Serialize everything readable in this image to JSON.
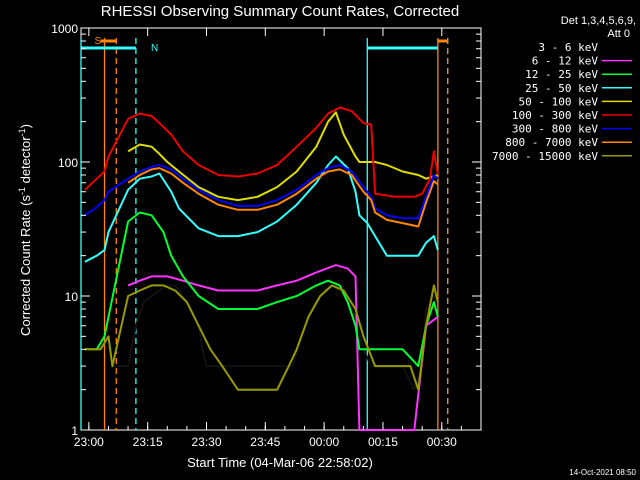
{
  "chart_data": {
    "type": "line",
    "title": "RHESSI Observing Summary Count Rates, Corrected",
    "xlabel": "Start Time (04-Mar-06 22:58:02)",
    "ylabel_main": "Corrected Count Rate (s",
    "ylabel_sup1": "-1",
    "ylabel_mid": " detector",
    "ylabel_sup2": "-1",
    "ylabel_end": ")",
    "y_scale": "log",
    "ylim": [
      1,
      1000
    ],
    "x_ticks": [
      "23:00",
      "23:15",
      "23:30",
      "23:45",
      "00:00",
      "00:15",
      "00:30"
    ],
    "x_tick_minutes": [
      2,
      17,
      32,
      47,
      62,
      77,
      92
    ],
    "xlim_minutes": [
      0,
      102
    ],
    "y_ticks": [
      "1",
      "10",
      "100",
      "1000"
    ],
    "y_tick_values": [
      1,
      10,
      100,
      1000
    ],
    "legend_header": [
      "Det 1,3,4,5,6,9,",
      "Att 0"
    ],
    "legend_placement": "right",
    "series": [
      {
        "name": "3 - 6 keV",
        "color": "#000000",
        "points": [
          [
            1,
            4
          ],
          [
            5,
            4
          ],
          [
            7,
            5
          ],
          [
            8,
            3
          ],
          [
            12,
            3
          ],
          [
            14,
            6
          ],
          [
            16,
            9
          ],
          [
            18,
            10
          ],
          [
            20,
            11
          ],
          [
            22,
            12
          ],
          [
            24,
            12
          ],
          [
            26,
            10
          ],
          [
            28,
            8
          ],
          [
            30,
            6
          ],
          [
            31,
            4
          ],
          [
            32,
            3
          ],
          [
            35,
            3
          ],
          [
            40,
            3
          ],
          [
            45,
            3
          ],
          [
            50,
            3
          ],
          [
            54,
            3
          ],
          [
            56,
            5
          ],
          [
            58,
            7
          ],
          [
            60,
            9
          ],
          [
            62,
            11
          ],
          [
            64,
            12
          ],
          [
            66,
            11
          ],
          [
            68,
            9
          ],
          [
            70,
            7
          ],
          [
            72,
            4
          ],
          [
            74,
            3
          ],
          [
            78,
            3
          ],
          [
            82,
            3
          ],
          [
            85,
            2
          ],
          [
            87,
            3
          ],
          [
            88,
            8
          ],
          [
            90,
            10
          ],
          [
            91,
            9
          ]
        ]
      },
      {
        "name": "6 - 12 keV",
        "color": "#ff33ff",
        "points": [
          [
            12,
            12
          ],
          [
            15,
            13
          ],
          [
            18,
            14
          ],
          [
            22,
            14
          ],
          [
            26,
            13
          ],
          [
            30,
            12
          ],
          [
            35,
            11
          ],
          [
            40,
            11
          ],
          [
            45,
            11
          ],
          [
            50,
            12
          ],
          [
            55,
            13
          ],
          [
            60,
            15
          ],
          [
            65,
            17
          ],
          [
            68,
            16
          ],
          [
            70,
            14
          ],
          [
            71,
            1
          ],
          [
            75,
            1
          ],
          [
            85,
            1
          ],
          [
            88,
            6
          ],
          [
            91,
            7
          ]
        ]
      },
      {
        "name": "12 - 25 keV",
        "color": "#00ff33",
        "points": [
          [
            1,
            4
          ],
          [
            4,
            4
          ],
          [
            6,
            5
          ],
          [
            7,
            7
          ],
          [
            12,
            36
          ],
          [
            15,
            42
          ],
          [
            18,
            40
          ],
          [
            21,
            30
          ],
          [
            23,
            20
          ],
          [
            26,
            14
          ],
          [
            30,
            10
          ],
          [
            35,
            8
          ],
          [
            40,
            8
          ],
          [
            45,
            8
          ],
          [
            50,
            9
          ],
          [
            55,
            10
          ],
          [
            60,
            12
          ],
          [
            63,
            13
          ],
          [
            66,
            12
          ],
          [
            68,
            9
          ],
          [
            70,
            6
          ],
          [
            71,
            4
          ],
          [
            78,
            4
          ],
          [
            82,
            4
          ],
          [
            86,
            3
          ],
          [
            88,
            6
          ],
          [
            90,
            9
          ],
          [
            91,
            7
          ]
        ]
      },
      {
        "name": "25 - 50 keV",
        "color": "#33ffff",
        "points": [
          [
            1,
            18
          ],
          [
            4,
            20
          ],
          [
            6,
            22
          ],
          [
            7,
            30
          ],
          [
            12,
            62
          ],
          [
            15,
            75
          ],
          [
            18,
            78
          ],
          [
            20,
            82
          ],
          [
            23,
            60
          ],
          [
            25,
            45
          ],
          [
            30,
            32
          ],
          [
            35,
            28
          ],
          [
            40,
            28
          ],
          [
            45,
            30
          ],
          [
            50,
            36
          ],
          [
            55,
            48
          ],
          [
            60,
            70
          ],
          [
            63,
            95
          ],
          [
            65,
            110
          ],
          [
            68,
            90
          ],
          [
            70,
            60
          ],
          [
            71,
            40
          ],
          [
            73,
            35
          ],
          [
            75,
            28
          ],
          [
            78,
            20
          ],
          [
            82,
            20
          ],
          [
            86,
            20
          ],
          [
            88,
            25
          ],
          [
            90,
            28
          ],
          [
            91,
            22
          ]
        ]
      },
      {
        "name": "50 - 100 keV",
        "color": "#dddd00",
        "points": [
          [
            12,
            120
          ],
          [
            15,
            135
          ],
          [
            18,
            130
          ],
          [
            20,
            115
          ],
          [
            22,
            100
          ],
          [
            25,
            85
          ],
          [
            30,
            65
          ],
          [
            35,
            55
          ],
          [
            40,
            52
          ],
          [
            45,
            55
          ],
          [
            50,
            65
          ],
          [
            55,
            85
          ],
          [
            60,
            130
          ],
          [
            63,
            200
          ],
          [
            65,
            235
          ],
          [
            67,
            160
          ],
          [
            70,
            110
          ],
          [
            71,
            100
          ],
          [
            75,
            100
          ],
          [
            78,
            95
          ],
          [
            82,
            85
          ],
          [
            86,
            80
          ],
          [
            88,
            75
          ],
          [
            91,
            80
          ]
        ]
      },
      {
        "name": "100 - 300 keV",
        "color": "#ee0000",
        "points": [
          [
            1,
            62
          ],
          [
            4,
            75
          ],
          [
            6,
            85
          ],
          [
            7,
            110
          ],
          [
            12,
            210
          ],
          [
            15,
            230
          ],
          [
            18,
            220
          ],
          [
            20,
            195
          ],
          [
            23,
            160
          ],
          [
            26,
            120
          ],
          [
            30,
            95
          ],
          [
            35,
            80
          ],
          [
            40,
            78
          ],
          [
            45,
            82
          ],
          [
            50,
            95
          ],
          [
            55,
            130
          ],
          [
            60,
            180
          ],
          [
            63,
            230
          ],
          [
            66,
            255
          ],
          [
            69,
            240
          ],
          [
            72,
            195
          ],
          [
            74,
            190
          ],
          [
            75,
            58
          ],
          [
            80,
            55
          ],
          [
            85,
            55
          ],
          [
            87,
            58
          ],
          [
            89,
            75
          ],
          [
            90,
            120
          ],
          [
            91,
            80
          ]
        ]
      },
      {
        "name": "300 - 800 keV",
        "color": "#0000ff",
        "points": [
          [
            1,
            40
          ],
          [
            4,
            46
          ],
          [
            6,
            52
          ],
          [
            7,
            60
          ],
          [
            12,
            75
          ],
          [
            15,
            85
          ],
          [
            18,
            92
          ],
          [
            20,
            95
          ],
          [
            23,
            88
          ],
          [
            26,
            75
          ],
          [
            30,
            62
          ],
          [
            35,
            52
          ],
          [
            40,
            47
          ],
          [
            45,
            47
          ],
          [
            50,
            52
          ],
          [
            55,
            62
          ],
          [
            60,
            80
          ],
          [
            63,
            90
          ],
          [
            66,
            95
          ],
          [
            69,
            85
          ],
          [
            72,
            65
          ],
          [
            74,
            55
          ],
          [
            75,
            45
          ],
          [
            78,
            40
          ],
          [
            82,
            38
          ],
          [
            86,
            38
          ],
          [
            88,
            55
          ],
          [
            90,
            80
          ],
          [
            91,
            75
          ]
        ]
      },
      {
        "name": "800 - 7000 keV",
        "color": "#ff8800",
        "points": [
          [
            12,
            70
          ],
          [
            15,
            80
          ],
          [
            18,
            88
          ],
          [
            20,
            90
          ],
          [
            23,
            82
          ],
          [
            26,
            70
          ],
          [
            30,
            58
          ],
          [
            35,
            48
          ],
          [
            40,
            44
          ],
          [
            45,
            44
          ],
          [
            50,
            48
          ],
          [
            55,
            58
          ],
          [
            60,
            75
          ],
          [
            63,
            85
          ],
          [
            66,
            88
          ],
          [
            69,
            80
          ],
          [
            72,
            60
          ],
          [
            74,
            52
          ],
          [
            75,
            42
          ],
          [
            78,
            37
          ],
          [
            82,
            35
          ],
          [
            86,
            33
          ],
          [
            88,
            50
          ],
          [
            90,
            72
          ],
          [
            91,
            68
          ]
        ]
      },
      {
        "name": "7000 - 15000 keV",
        "color": "#999900",
        "points": [
          [
            1,
            4
          ],
          [
            5,
            4
          ],
          [
            7,
            5
          ],
          [
            8,
            3
          ],
          [
            12,
            10
          ],
          [
            15,
            11
          ],
          [
            18,
            12
          ],
          [
            21,
            12
          ],
          [
            24,
            11
          ],
          [
            27,
            9
          ],
          [
            30,
            6
          ],
          [
            33,
            4
          ],
          [
            36,
            3
          ],
          [
            40,
            2
          ],
          [
            45,
            2
          ],
          [
            50,
            2
          ],
          [
            53,
            3
          ],
          [
            55,
            4
          ],
          [
            58,
            7
          ],
          [
            61,
            10
          ],
          [
            64,
            12
          ],
          [
            67,
            11
          ],
          [
            70,
            8
          ],
          [
            72,
            5
          ],
          [
            75,
            3
          ],
          [
            80,
            3
          ],
          [
            84,
            3
          ],
          [
            86,
            2
          ],
          [
            88,
            6
          ],
          [
            90,
            12
          ],
          [
            91,
            9
          ]
        ]
      }
    ],
    "annotations": [
      {
        "label": "S",
        "color": "#ff8800",
        "x_min": 6,
        "style": "solid-and-dashed",
        "x2_min": 9,
        "bar_start": 6,
        "bar_end": 9
      },
      {
        "label": "N",
        "color": "#33ffff",
        "x_min": 0,
        "style": "solid-and-dashed",
        "x2_min": 14,
        "bar_start": 0,
        "bar_end": 14
      }
    ],
    "attenuator_lines": [
      {
        "color": "#ff8800",
        "x_min": 6,
        "dashed": false
      },
      {
        "color": "#ff8800",
        "x_min": 9,
        "dashed": true
      },
      {
        "color": "#33ffff",
        "x_min": 0,
        "dashed": false
      },
      {
        "color": "#33ffff",
        "x_min": 14,
        "dashed": true
      },
      {
        "color": "#33ffff",
        "x_min": 73,
        "dashed": false
      },
      {
        "color": "#33ffff",
        "x_min": 93.5,
        "dashed": true
      },
      {
        "color": "#ff8800",
        "x_min": 91,
        "dashed": false
      },
      {
        "color": "#ff8800",
        "x_min": 93.5,
        "dashed": true
      }
    ],
    "top_bars": [
      {
        "color": "#33ffff",
        "x_from": 0,
        "x_to": 14
      },
      {
        "color": "#ff8800",
        "x_from": 5,
        "x_to": 9
      },
      {
        "color": "#33ffff",
        "x_from": 73,
        "x_to": 91
      },
      {
        "color": "#ff8800",
        "x_from": 91,
        "x_to": 93.5
      }
    ]
  },
  "footer_timestamp": "14-Oct-2021 08:50"
}
